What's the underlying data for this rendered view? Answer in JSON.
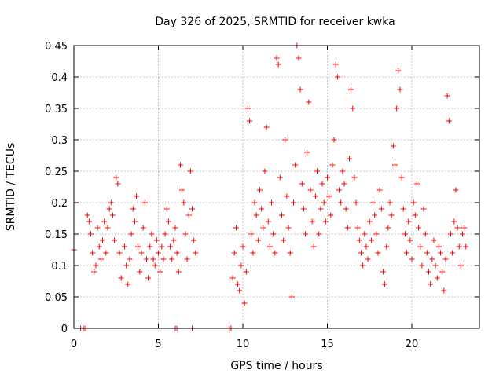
{
  "chart_data": {
    "type": "scatter",
    "title": "Day 326 of 2025, SRMTID for receiver kwka",
    "xlabel": "GPS time / hours",
    "ylabel": "SRMTID / TECUs",
    "xlim": [
      0,
      24
    ],
    "ylim": [
      0,
      0.45
    ],
    "xticks": [
      0,
      5,
      10,
      15,
      20
    ],
    "xtick_labels": [
      "0",
      "5",
      "10",
      "15",
      "20"
    ],
    "yticks": [
      0,
      0.05,
      0.1,
      0.15,
      0.2,
      0.25,
      0.3,
      0.35,
      0.4,
      0.45
    ],
    "ytick_labels": [
      "0",
      "0.05",
      "0.1",
      "0.15",
      "0.2",
      "0.25",
      "0.3",
      "0.35",
      "0.4",
      "0.45"
    ],
    "grid": true,
    "marker": "+",
    "color": "#ff0000",
    "series": [
      {
        "name": "SRMTID",
        "points": [
          [
            0.0,
            0.125
          ],
          [
            0.4,
            0.0
          ],
          [
            0.6,
            0.0
          ],
          [
            0.7,
            0.0
          ],
          [
            6.0,
            0.0
          ],
          [
            6.1,
            0.0
          ],
          [
            7.0,
            0.0
          ],
          [
            9.2,
            0.0
          ],
          [
            9.3,
            0.0
          ],
          [
            0.8,
            0.18
          ],
          [
            0.9,
            0.17
          ],
          [
            1.0,
            0.15
          ],
          [
            1.1,
            0.12
          ],
          [
            1.2,
            0.09
          ],
          [
            1.3,
            0.1
          ],
          [
            1.4,
            0.16
          ],
          [
            1.5,
            0.13
          ],
          [
            1.6,
            0.11
          ],
          [
            1.7,
            0.14
          ],
          [
            1.8,
            0.17
          ],
          [
            1.9,
            0.12
          ],
          [
            2.0,
            0.16
          ],
          [
            2.1,
            0.19
          ],
          [
            2.2,
            0.2
          ],
          [
            2.3,
            0.18
          ],
          [
            2.4,
            0.14
          ],
          [
            2.5,
            0.24
          ],
          [
            2.6,
            0.23
          ],
          [
            2.7,
            0.12
          ],
          [
            2.8,
            0.08
          ],
          [
            3.0,
            0.13
          ],
          [
            3.1,
            0.1
          ],
          [
            3.2,
            0.07
          ],
          [
            3.3,
            0.11
          ],
          [
            3.4,
            0.15
          ],
          [
            3.5,
            0.19
          ],
          [
            3.6,
            0.17
          ],
          [
            3.7,
            0.21
          ],
          [
            3.8,
            0.13
          ],
          [
            3.9,
            0.09
          ],
          [
            4.0,
            0.12
          ],
          [
            4.1,
            0.16
          ],
          [
            4.2,
            0.2
          ],
          [
            4.3,
            0.11
          ],
          [
            4.4,
            0.08
          ],
          [
            4.5,
            0.13
          ],
          [
            4.6,
            0.15
          ],
          [
            4.7,
            0.11
          ],
          [
            4.8,
            0.1
          ],
          [
            4.9,
            0.14
          ],
          [
            5.0,
            0.12
          ],
          [
            5.1,
            0.09
          ],
          [
            5.2,
            0.13
          ],
          [
            5.3,
            0.11
          ],
          [
            5.4,
            0.15
          ],
          [
            5.5,
            0.19
          ],
          [
            5.6,
            0.17
          ],
          [
            5.7,
            0.13
          ],
          [
            5.8,
            0.11
          ],
          [
            5.9,
            0.14
          ],
          [
            6.0,
            0.16
          ],
          [
            6.1,
            0.12
          ],
          [
            6.2,
            0.09
          ],
          [
            6.3,
            0.26
          ],
          [
            6.4,
            0.22
          ],
          [
            6.5,
            0.2
          ],
          [
            6.6,
            0.15
          ],
          [
            6.7,
            0.11
          ],
          [
            6.8,
            0.18
          ],
          [
            6.9,
            0.25
          ],
          [
            7.0,
            0.19
          ],
          [
            7.1,
            0.14
          ],
          [
            7.2,
            0.12
          ],
          [
            9.4,
            0.08
          ],
          [
            9.5,
            0.12
          ],
          [
            9.6,
            0.16
          ],
          [
            9.7,
            0.07
          ],
          [
            9.8,
            0.06
          ],
          [
            9.9,
            0.1
          ],
          [
            10.0,
            0.13
          ],
          [
            10.1,
            0.04
          ],
          [
            10.2,
            0.09
          ],
          [
            10.3,
            0.35
          ],
          [
            10.4,
            0.33
          ],
          [
            10.5,
            0.15
          ],
          [
            10.6,
            0.12
          ],
          [
            10.7,
            0.2
          ],
          [
            10.8,
            0.18
          ],
          [
            10.9,
            0.14
          ],
          [
            11.0,
            0.22
          ],
          [
            11.1,
            0.19
          ],
          [
            11.2,
            0.16
          ],
          [
            11.3,
            0.25
          ],
          [
            11.4,
            0.32
          ],
          [
            11.5,
            0.17
          ],
          [
            11.6,
            0.13
          ],
          [
            11.7,
            0.2
          ],
          [
            11.8,
            0.15
          ],
          [
            11.9,
            0.12
          ],
          [
            12.0,
            0.43
          ],
          [
            12.1,
            0.42
          ],
          [
            12.2,
            0.24
          ],
          [
            12.3,
            0.18
          ],
          [
            12.4,
            0.14
          ],
          [
            12.5,
            0.3
          ],
          [
            12.6,
            0.21
          ],
          [
            12.7,
            0.16
          ],
          [
            12.8,
            0.12
          ],
          [
            12.9,
            0.05
          ],
          [
            13.0,
            0.2
          ],
          [
            13.1,
            0.26
          ],
          [
            13.2,
            0.45
          ],
          [
            13.3,
            0.43
          ],
          [
            13.4,
            0.38
          ],
          [
            13.5,
            0.23
          ],
          [
            13.6,
            0.19
          ],
          [
            13.7,
            0.15
          ],
          [
            13.8,
            0.28
          ],
          [
            13.9,
            0.36
          ],
          [
            14.0,
            0.22
          ],
          [
            14.1,
            0.17
          ],
          [
            14.2,
            0.13
          ],
          [
            14.3,
            0.21
          ],
          [
            14.4,
            0.25
          ],
          [
            14.5,
            0.15
          ],
          [
            14.6,
            0.19
          ],
          [
            14.7,
            0.23
          ],
          [
            14.8,
            0.2
          ],
          [
            14.9,
            0.17
          ],
          [
            15.0,
            0.24
          ],
          [
            15.1,
            0.21
          ],
          [
            15.2,
            0.18
          ],
          [
            15.3,
            0.26
          ],
          [
            15.4,
            0.3
          ],
          [
            15.5,
            0.42
          ],
          [
            15.6,
            0.4
          ],
          [
            15.7,
            0.22
          ],
          [
            15.8,
            0.2
          ],
          [
            15.9,
            0.25
          ],
          [
            16.0,
            0.23
          ],
          [
            16.1,
            0.19
          ],
          [
            16.2,
            0.16
          ],
          [
            16.3,
            0.27
          ],
          [
            16.4,
            0.38
          ],
          [
            16.5,
            0.35
          ],
          [
            16.6,
            0.24
          ],
          [
            16.7,
            0.2
          ],
          [
            16.8,
            0.16
          ],
          [
            16.9,
            0.14
          ],
          [
            17.0,
            0.12
          ],
          [
            17.1,
            0.1
          ],
          [
            17.2,
            0.15
          ],
          [
            17.3,
            0.13
          ],
          [
            17.4,
            0.11
          ],
          [
            17.5,
            0.17
          ],
          [
            17.6,
            0.14
          ],
          [
            17.7,
            0.2
          ],
          [
            17.8,
            0.18
          ],
          [
            17.9,
            0.15
          ],
          [
            18.0,
            0.12
          ],
          [
            18.1,
            0.22
          ],
          [
            18.2,
            0.19
          ],
          [
            18.3,
            0.09
          ],
          [
            18.4,
            0.07
          ],
          [
            18.5,
            0.13
          ],
          [
            18.6,
            0.16
          ],
          [
            18.7,
            0.2
          ],
          [
            18.8,
            0.18
          ],
          [
            18.9,
            0.29
          ],
          [
            19.0,
            0.26
          ],
          [
            19.1,
            0.35
          ],
          [
            19.2,
            0.41
          ],
          [
            19.3,
            0.38
          ],
          [
            19.4,
            0.24
          ],
          [
            19.5,
            0.19
          ],
          [
            19.6,
            0.15
          ],
          [
            19.7,
            0.12
          ],
          [
            19.8,
            0.17
          ],
          [
            19.9,
            0.14
          ],
          [
            20.0,
            0.11
          ],
          [
            20.1,
            0.2
          ],
          [
            20.2,
            0.18
          ],
          [
            20.3,
            0.23
          ],
          [
            20.4,
            0.16
          ],
          [
            20.5,
            0.13
          ],
          [
            20.6,
            0.1
          ],
          [
            20.7,
            0.19
          ],
          [
            20.8,
            0.15
          ],
          [
            20.9,
            0.12
          ],
          [
            21.0,
            0.09
          ],
          [
            21.1,
            0.07
          ],
          [
            21.2,
            0.11
          ],
          [
            21.3,
            0.14
          ],
          [
            21.4,
            0.1
          ],
          [
            21.5,
            0.08
          ],
          [
            21.6,
            0.13
          ],
          [
            21.7,
            0.12
          ],
          [
            21.8,
            0.09
          ],
          [
            21.9,
            0.06
          ],
          [
            22.0,
            0.11
          ],
          [
            22.1,
            0.37
          ],
          [
            22.2,
            0.33
          ],
          [
            22.3,
            0.15
          ],
          [
            22.4,
            0.12
          ],
          [
            22.5,
            0.17
          ],
          [
            22.6,
            0.22
          ],
          [
            22.7,
            0.16
          ],
          [
            22.8,
            0.13
          ],
          [
            22.9,
            0.1
          ],
          [
            23.0,
            0.15
          ],
          [
            23.1,
            0.16
          ],
          [
            23.2,
            0.13
          ]
        ]
      }
    ]
  }
}
